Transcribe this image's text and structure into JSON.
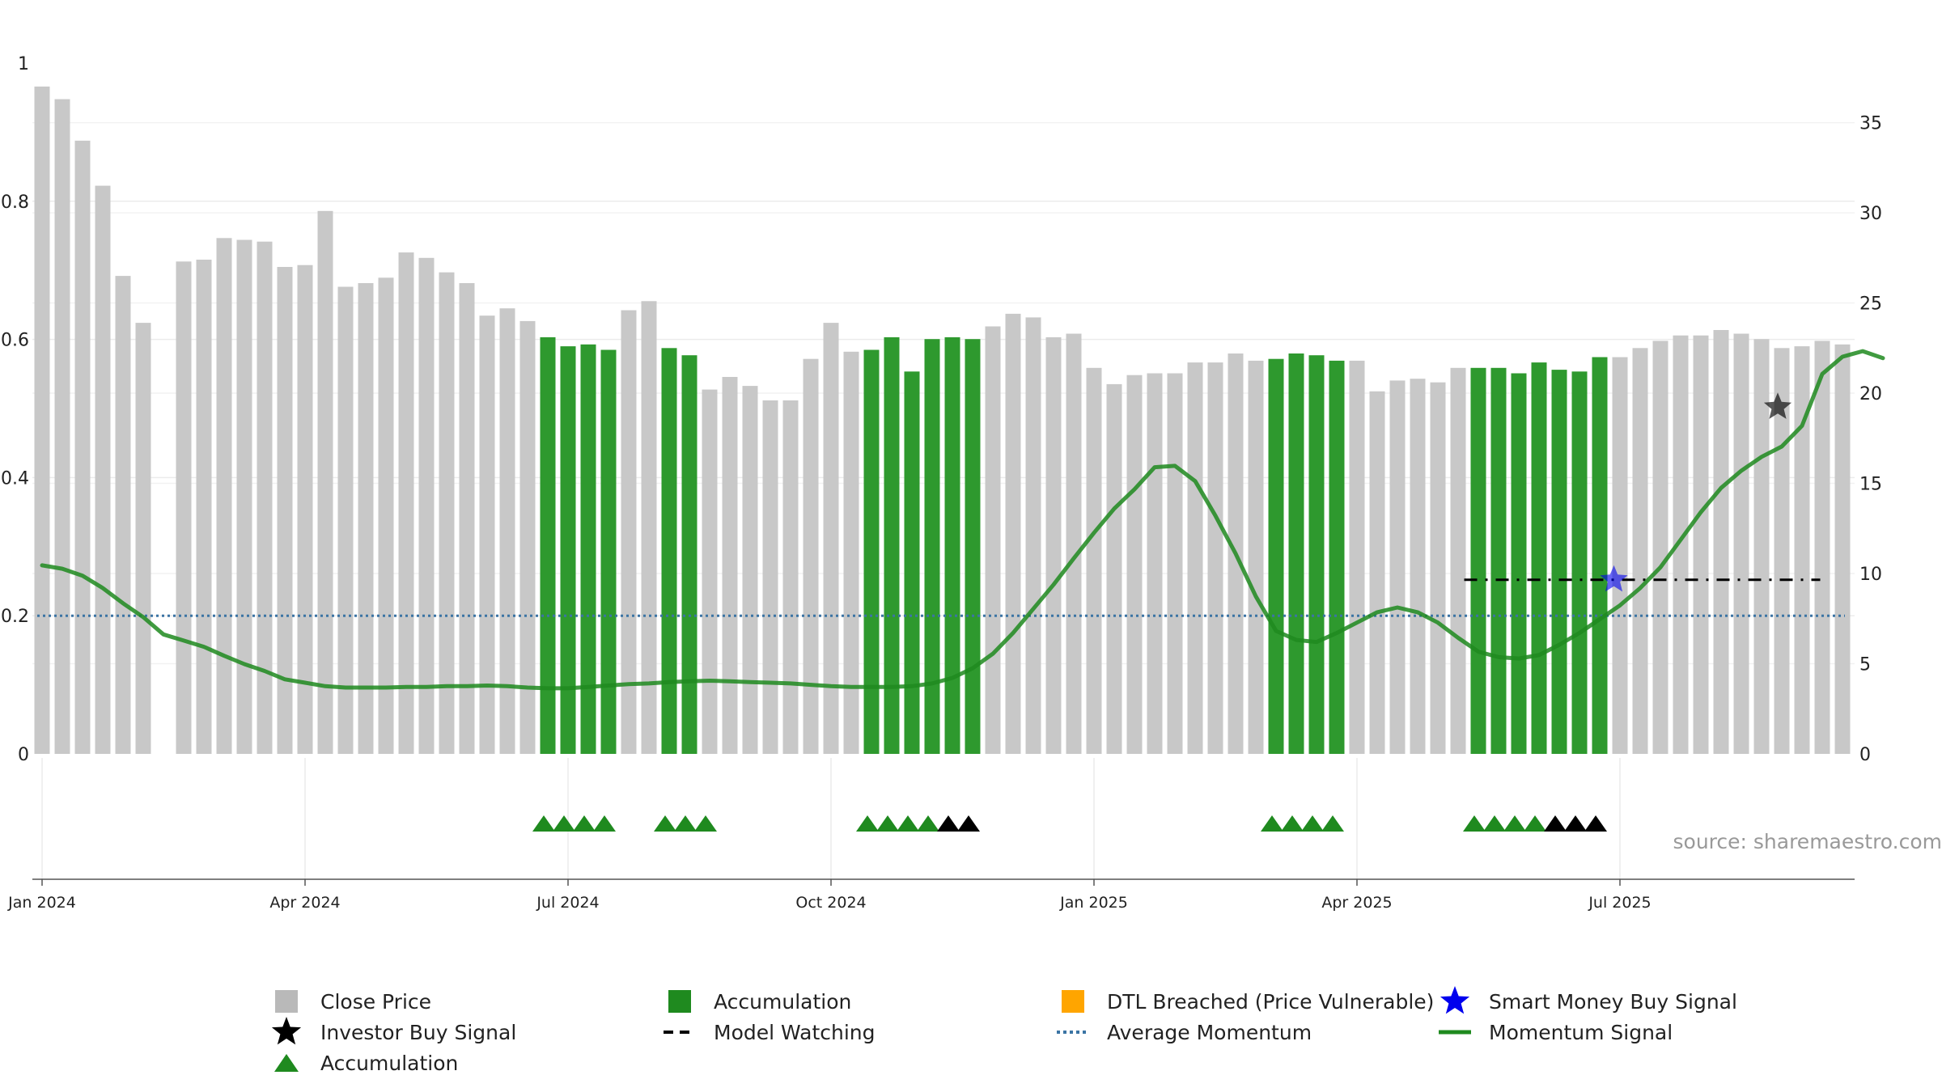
{
  "chart_data": {
    "type": "bar",
    "title": "",
    "xlabel": "",
    "ylabel": "",
    "source": "source: sharemaestro.com",
    "left_axis": {
      "ylim": [
        0,
        1
      ],
      "ticks": [
        "0",
        "0.2",
        "0.4",
        "0.6",
        "0.8",
        "1"
      ]
    },
    "right_axis": {
      "ylim": [
        0,
        38.3
      ],
      "ticks": [
        "0",
        "5",
        "10",
        "15",
        "20",
        "25",
        "30",
        "35"
      ]
    },
    "x_axis": {
      "start_date": "2024-01-01",
      "labels": [
        "Jan 2024",
        "Apr 2024",
        "Jul 2024",
        "Oct 2024",
        "Jan 2025",
        "Apr 2025",
        "Jul 2025"
      ],
      "label_weeks": [
        0,
        13,
        26,
        39,
        52,
        65,
        78
      ]
    },
    "grid": true,
    "colors": {
      "close_price": "#c8c8c8",
      "accumulation": "#2e992e",
      "dtl_breached": "#ffa500",
      "smart_money": "#0000ee",
      "investor": "#000000",
      "momentum": "#1f8a1f",
      "average_momentum": "#3b74a4",
      "model_watching": "#000000"
    },
    "price_series": {
      "name": "Close Price",
      "values": [
        37.0,
        36.3,
        34.0,
        31.5,
        26.5,
        23.9,
        0,
        27.3,
        27.4,
        28.6,
        28.5,
        28.4,
        27.0,
        27.1,
        30.1,
        25.9,
        26.1,
        26.4,
        27.8,
        27.5,
        26.7,
        26.1,
        24.3,
        24.7,
        24.0,
        23.1,
        22.6,
        22.7,
        22.4,
        24.6,
        25.1,
        22.5,
        22.1,
        20.2,
        20.9,
        20.4,
        19.6,
        19.6,
        21.9,
        23.9,
        22.3,
        22.4,
        23.1,
        21.2,
        23.0,
        23.1,
        23.0,
        23.7,
        24.4,
        24.2,
        23.1,
        23.3,
        21.4,
        20.5,
        21.0,
        21.1,
        21.1,
        21.7,
        21.7,
        22.2,
        21.8,
        21.9,
        22.2,
        22.1,
        21.8,
        21.8,
        20.1,
        20.7,
        20.8,
        20.6,
        21.4,
        21.4,
        21.4,
        21.1,
        21.7,
        21.3,
        21.2,
        22.0,
        22.0,
        22.5,
        22.9,
        23.2,
        23.2,
        23.5,
        23.3,
        23.0,
        22.5,
        22.6,
        22.9,
        22.7
      ]
    },
    "accumulation_weeks": [
      25,
      26,
      27,
      28,
      31,
      32,
      41,
      42,
      43,
      44,
      45,
      46,
      61,
      62,
      63,
      64,
      71,
      72,
      73,
      74,
      75,
      76,
      77
    ],
    "momentum_series": {
      "name": "Momentum Signal",
      "values": [
        0.273,
        0.268,
        0.258,
        0.24,
        0.218,
        0.198,
        0.173,
        0.164,
        0.155,
        0.142,
        0.13,
        0.12,
        0.108,
        0.103,
        0.098,
        0.096,
        0.096,
        0.096,
        0.097,
        0.097,
        0.098,
        0.098,
        0.099,
        0.098,
        0.096,
        0.095,
        0.095,
        0.097,
        0.099,
        0.101,
        0.102,
        0.104,
        0.105,
        0.106,
        0.105,
        0.104,
        0.103,
        0.102,
        0.1,
        0.098,
        0.097,
        0.097,
        0.097,
        0.098,
        0.102,
        0.11,
        0.124,
        0.145,
        0.175,
        0.21,
        0.245,
        0.283,
        0.32,
        0.355,
        0.383,
        0.415,
        0.417,
        0.395,
        0.345,
        0.29,
        0.228,
        0.178,
        0.165,
        0.162,
        0.175,
        0.19,
        0.205,
        0.212,
        0.205,
        0.19,
        0.168,
        0.148,
        0.14,
        0.138,
        0.143,
        0.158,
        0.175,
        0.195,
        0.215,
        0.24,
        0.27,
        0.31,
        0.35,
        0.385,
        0.41,
        0.43,
        0.445,
        0.475,
        0.55,
        0.575,
        0.583,
        0.573
      ]
    },
    "average_momentum": 0.2,
    "model_watching": {
      "from_week": 70.3,
      "to_week": 87.9,
      "value": 0.252
    },
    "smart_money_signal": {
      "week": 77.7,
      "value": 0.252
    },
    "investor_buy_signal": {
      "week": 85.8,
      "value": 0.502
    },
    "triangles": {
      "green": [
        24.8,
        25.8,
        26.8,
        27.8,
        30.8,
        31.8,
        32.8,
        40.8,
        41.8,
        42.8,
        43.8,
        60.8,
        61.8,
        62.8,
        63.8,
        70.8,
        71.8,
        72.8,
        73.8
      ],
      "black": [
        44.8,
        45.8,
        74.8,
        75.8,
        76.8
      ]
    },
    "legend": {
      "items": [
        {
          "label": "Close Price",
          "symbol": "square",
          "color": "#b9b9b9"
        },
        {
          "label": "Accumulation",
          "symbol": "square",
          "color": "#1f8a1f"
        },
        {
          "label": "DTL Breached (Price Vulnerable)",
          "symbol": "square",
          "color": "#ffa500"
        },
        {
          "label": "Smart Money Buy Signal",
          "symbol": "star",
          "color": "#0000ee"
        },
        {
          "label": "Investor Buy Signal",
          "symbol": "star",
          "color": "#000000"
        },
        {
          "label": "Model Watching",
          "symbol": "dash",
          "color": "#000000"
        },
        {
          "label": "Average Momentum",
          "symbol": "dot",
          "color": "#3b74a4"
        },
        {
          "label": "Momentum Signal",
          "symbol": "line",
          "color": "#1f8a1f"
        },
        {
          "label": "Accumulation",
          "symbol": "triangle",
          "color": "#1f8a1f"
        }
      ]
    }
  }
}
